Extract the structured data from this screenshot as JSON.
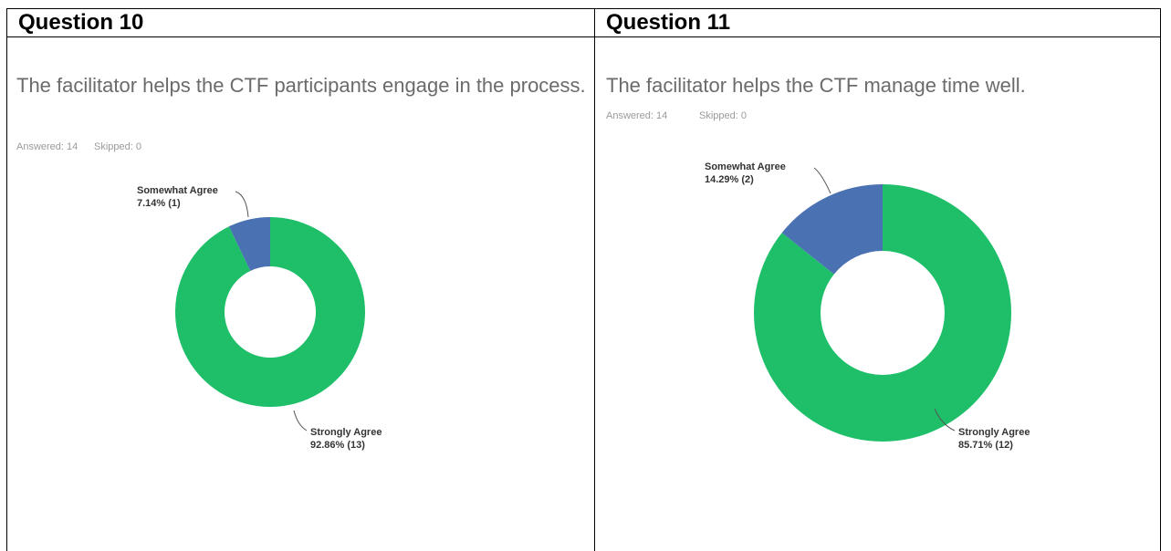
{
  "chart_data": [
    {
      "type": "pie",
      "header": "Question 10",
      "title": "The facilitator helps the CTF participants engage in the process.",
      "annotations": [
        "Answered: 14",
        "Skipped: 0"
      ],
      "categories": [
        "Strongly Agree",
        "Somewhat Agree"
      ],
      "values": [
        92.86,
        7.14
      ],
      "value_labels": [
        "92.86% (13)",
        "7.14% (1)"
      ],
      "colors": [
        "#1fbf6a",
        "#4a72b2"
      ]
    },
    {
      "type": "pie",
      "header": "Question 11",
      "title": "The facilitator helps the CTF manage time well.",
      "annotations": [
        "Answered: 14",
        "Skipped: 0"
      ],
      "categories": [
        "Strongly Agree",
        "Somewhat Agree"
      ],
      "values": [
        85.71,
        14.29
      ],
      "value_labels": [
        "85.71% (12)",
        "14.29% (2)"
      ],
      "colors": [
        "#1fbf6a",
        "#4a72b2"
      ]
    }
  ]
}
